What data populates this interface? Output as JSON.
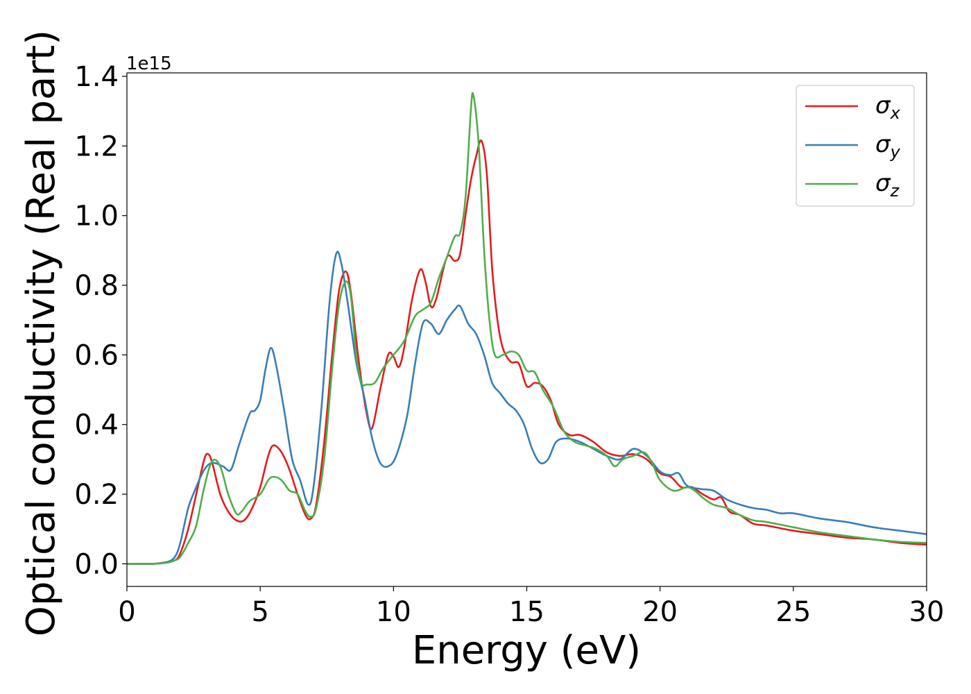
{
  "chart_data": {
    "type": "line",
    "xlabel": "Energy (eV)",
    "ylabel": "Optical conductivity (Real part)",
    "y_offset_label": "1e15",
    "xlim": [
      0,
      30
    ],
    "ylim": [
      -0.065,
      1.41
    ],
    "xticks": [
      0,
      5,
      10,
      15,
      20,
      25,
      30
    ],
    "xtick_labels": [
      "0",
      "5",
      "10",
      "15",
      "20",
      "25",
      "30"
    ],
    "yticks": [
      0.0,
      0.2,
      0.4,
      0.6,
      0.8,
      1.0,
      1.2,
      1.4
    ],
    "ytick_labels": [
      "0.0",
      "0.2",
      "0.4",
      "0.6",
      "0.8",
      "1.0",
      "1.2",
      "1.4"
    ],
    "grid": false,
    "legend_position": "top-right",
    "series": [
      {
        "name": "σx",
        "legend_symbol": "σ",
        "legend_subscript": "x",
        "color": "#e41a1c",
        "points": [
          [
            0,
            0
          ],
          [
            1,
            0
          ],
          [
            1.5,
            0.005
          ],
          [
            1.8,
            0.01
          ],
          [
            2,
            0.03
          ],
          [
            2.3,
            0.1
          ],
          [
            2.6,
            0.2
          ],
          [
            2.9,
            0.3
          ],
          [
            3.05,
            0.315
          ],
          [
            3.2,
            0.29
          ],
          [
            3.5,
            0.2
          ],
          [
            3.8,
            0.15
          ],
          [
            4.1,
            0.125
          ],
          [
            4.4,
            0.125
          ],
          [
            4.7,
            0.16
          ],
          [
            5.0,
            0.22
          ],
          [
            5.3,
            0.31
          ],
          [
            5.5,
            0.34
          ],
          [
            5.8,
            0.32
          ],
          [
            6.1,
            0.27
          ],
          [
            6.4,
            0.2
          ],
          [
            6.7,
            0.14
          ],
          [
            6.9,
            0.13
          ],
          [
            7.1,
            0.17
          ],
          [
            7.4,
            0.35
          ],
          [
            7.7,
            0.6
          ],
          [
            7.95,
            0.78
          ],
          [
            8.2,
            0.84
          ],
          [
            8.4,
            0.78
          ],
          [
            8.7,
            0.58
          ],
          [
            9.0,
            0.43
          ],
          [
            9.2,
            0.39
          ],
          [
            9.5,
            0.5
          ],
          [
            9.8,
            0.6
          ],
          [
            10.0,
            0.595
          ],
          [
            10.2,
            0.565
          ],
          [
            10.4,
            0.62
          ],
          [
            10.7,
            0.76
          ],
          [
            11.0,
            0.845
          ],
          [
            11.2,
            0.81
          ],
          [
            11.4,
            0.74
          ],
          [
            11.6,
            0.76
          ],
          [
            12.0,
            0.88
          ],
          [
            12.3,
            0.87
          ],
          [
            12.5,
            0.89
          ],
          [
            12.7,
            1.0
          ],
          [
            12.9,
            1.1
          ],
          [
            13.1,
            1.17
          ],
          [
            13.3,
            1.215
          ],
          [
            13.5,
            1.12
          ],
          [
            13.7,
            0.85
          ],
          [
            13.9,
            0.7
          ],
          [
            14.1,
            0.62
          ],
          [
            14.4,
            0.58
          ],
          [
            14.7,
            0.575
          ],
          [
            15.0,
            0.51
          ],
          [
            15.3,
            0.52
          ],
          [
            15.6,
            0.51
          ],
          [
            15.9,
            0.47
          ],
          [
            16.2,
            0.4
          ],
          [
            16.6,
            0.37
          ],
          [
            17.0,
            0.37
          ],
          [
            17.5,
            0.35
          ],
          [
            18.0,
            0.32
          ],
          [
            18.5,
            0.31
          ],
          [
            19.0,
            0.315
          ],
          [
            19.5,
            0.3
          ],
          [
            20.0,
            0.26
          ],
          [
            20.4,
            0.25
          ],
          [
            20.8,
            0.22
          ],
          [
            21.2,
            0.22
          ],
          [
            21.6,
            0.2
          ],
          [
            22.0,
            0.185
          ],
          [
            22.3,
            0.19
          ],
          [
            22.6,
            0.15
          ],
          [
            23.0,
            0.14
          ],
          [
            23.5,
            0.115
          ],
          [
            24.0,
            0.11
          ],
          [
            25.0,
            0.095
          ],
          [
            26.0,
            0.085
          ],
          [
            27.0,
            0.075
          ],
          [
            28.0,
            0.07
          ],
          [
            29.0,
            0.06
          ],
          [
            30.0,
            0.055
          ]
        ]
      },
      {
        "name": "σy",
        "legend_symbol": "σ",
        "legend_subscript": "y",
        "color": "#377eb8",
        "points": [
          [
            0,
            0
          ],
          [
            1,
            0
          ],
          [
            1.5,
            0.005
          ],
          [
            1.8,
            0.02
          ],
          [
            2.0,
            0.06
          ],
          [
            2.3,
            0.16
          ],
          [
            2.6,
            0.22
          ],
          [
            2.9,
            0.27
          ],
          [
            3.2,
            0.29
          ],
          [
            3.6,
            0.28
          ],
          [
            3.9,
            0.27
          ],
          [
            4.2,
            0.34
          ],
          [
            4.6,
            0.43
          ],
          [
            4.8,
            0.44
          ],
          [
            5.0,
            0.47
          ],
          [
            5.2,
            0.56
          ],
          [
            5.4,
            0.62
          ],
          [
            5.6,
            0.57
          ],
          [
            5.9,
            0.44
          ],
          [
            6.2,
            0.3
          ],
          [
            6.5,
            0.24
          ],
          [
            6.8,
            0.17
          ],
          [
            7.0,
            0.22
          ],
          [
            7.3,
            0.45
          ],
          [
            7.6,
            0.75
          ],
          [
            7.85,
            0.89
          ],
          [
            8.05,
            0.86
          ],
          [
            8.3,
            0.74
          ],
          [
            8.6,
            0.58
          ],
          [
            8.9,
            0.48
          ],
          [
            9.2,
            0.36
          ],
          [
            9.5,
            0.29
          ],
          [
            9.8,
            0.28
          ],
          [
            10.1,
            0.31
          ],
          [
            10.5,
            0.42
          ],
          [
            10.8,
            0.57
          ],
          [
            11.1,
            0.69
          ],
          [
            11.4,
            0.69
          ],
          [
            11.7,
            0.66
          ],
          [
            12.0,
            0.7
          ],
          [
            12.3,
            0.73
          ],
          [
            12.5,
            0.74
          ],
          [
            12.8,
            0.69
          ],
          [
            13.1,
            0.66
          ],
          [
            13.4,
            0.6
          ],
          [
            13.7,
            0.52
          ],
          [
            14.0,
            0.49
          ],
          [
            14.3,
            0.46
          ],
          [
            14.6,
            0.44
          ],
          [
            14.9,
            0.4
          ],
          [
            15.2,
            0.33
          ],
          [
            15.5,
            0.29
          ],
          [
            15.8,
            0.3
          ],
          [
            16.1,
            0.35
          ],
          [
            16.5,
            0.36
          ],
          [
            17.0,
            0.35
          ],
          [
            17.5,
            0.33
          ],
          [
            18.0,
            0.31
          ],
          [
            18.5,
            0.3
          ],
          [
            19.0,
            0.33
          ],
          [
            19.5,
            0.31
          ],
          [
            20.0,
            0.265
          ],
          [
            20.4,
            0.255
          ],
          [
            20.7,
            0.26
          ],
          [
            21.0,
            0.225
          ],
          [
            21.5,
            0.215
          ],
          [
            22.0,
            0.21
          ],
          [
            22.5,
            0.185
          ],
          [
            23.0,
            0.17
          ],
          [
            23.5,
            0.16
          ],
          [
            24.0,
            0.155
          ],
          [
            24.5,
            0.145
          ],
          [
            25.0,
            0.145
          ],
          [
            26.0,
            0.13
          ],
          [
            27.0,
            0.12
          ],
          [
            28.0,
            0.105
          ],
          [
            29.0,
            0.095
          ],
          [
            30.0,
            0.085
          ]
        ]
      },
      {
        "name": "σz",
        "legend_symbol": "σ",
        "legend_subscript": "z",
        "color": "#4daf4a",
        "points": [
          [
            0,
            0
          ],
          [
            1,
            0
          ],
          [
            1.5,
            0.003
          ],
          [
            1.8,
            0.01
          ],
          [
            2.0,
            0.02
          ],
          [
            2.3,
            0.06
          ],
          [
            2.6,
            0.11
          ],
          [
            2.9,
            0.22
          ],
          [
            3.2,
            0.295
          ],
          [
            3.5,
            0.28
          ],
          [
            3.8,
            0.2
          ],
          [
            4.1,
            0.145
          ],
          [
            4.3,
            0.15
          ],
          [
            4.6,
            0.18
          ],
          [
            5.0,
            0.2
          ],
          [
            5.3,
            0.24
          ],
          [
            5.5,
            0.25
          ],
          [
            5.8,
            0.24
          ],
          [
            6.1,
            0.21
          ],
          [
            6.4,
            0.2
          ],
          [
            6.7,
            0.15
          ],
          [
            6.9,
            0.135
          ],
          [
            7.1,
            0.16
          ],
          [
            7.4,
            0.3
          ],
          [
            7.7,
            0.56
          ],
          [
            7.95,
            0.74
          ],
          [
            8.2,
            0.81
          ],
          [
            8.4,
            0.77
          ],
          [
            8.6,
            0.6
          ],
          [
            8.8,
            0.52
          ],
          [
            9.0,
            0.515
          ],
          [
            9.3,
            0.52
          ],
          [
            9.6,
            0.56
          ],
          [
            10.0,
            0.6
          ],
          [
            10.4,
            0.64
          ],
          [
            10.8,
            0.71
          ],
          [
            11.1,
            0.73
          ],
          [
            11.4,
            0.75
          ],
          [
            11.7,
            0.82
          ],
          [
            12.0,
            0.88
          ],
          [
            12.3,
            0.94
          ],
          [
            12.5,
            0.95
          ],
          [
            12.7,
            1.05
          ],
          [
            12.9,
            1.3
          ],
          [
            13.0,
            1.345
          ],
          [
            13.2,
            1.2
          ],
          [
            13.4,
            0.9
          ],
          [
            13.6,
            0.7
          ],
          [
            13.8,
            0.6
          ],
          [
            14.1,
            0.6
          ],
          [
            14.4,
            0.61
          ],
          [
            14.7,
            0.6
          ],
          [
            15.0,
            0.555
          ],
          [
            15.3,
            0.55
          ],
          [
            15.6,
            0.5
          ],
          [
            16.0,
            0.45
          ],
          [
            16.4,
            0.38
          ],
          [
            16.8,
            0.35
          ],
          [
            17.2,
            0.34
          ],
          [
            17.6,
            0.33
          ],
          [
            18.0,
            0.31
          ],
          [
            18.3,
            0.28
          ],
          [
            18.6,
            0.3
          ],
          [
            19.0,
            0.31
          ],
          [
            19.4,
            0.32
          ],
          [
            19.7,
            0.29
          ],
          [
            20.0,
            0.24
          ],
          [
            20.5,
            0.21
          ],
          [
            21.0,
            0.22
          ],
          [
            21.3,
            0.21
          ],
          [
            21.6,
            0.19
          ],
          [
            22.0,
            0.17
          ],
          [
            22.5,
            0.16
          ],
          [
            23.0,
            0.14
          ],
          [
            23.5,
            0.125
          ],
          [
            24.0,
            0.12
          ],
          [
            25.0,
            0.105
          ],
          [
            26.0,
            0.09
          ],
          [
            27.0,
            0.08
          ],
          [
            28.0,
            0.07
          ],
          [
            29.0,
            0.063
          ],
          [
            30.0,
            0.06
          ]
        ]
      }
    ]
  }
}
